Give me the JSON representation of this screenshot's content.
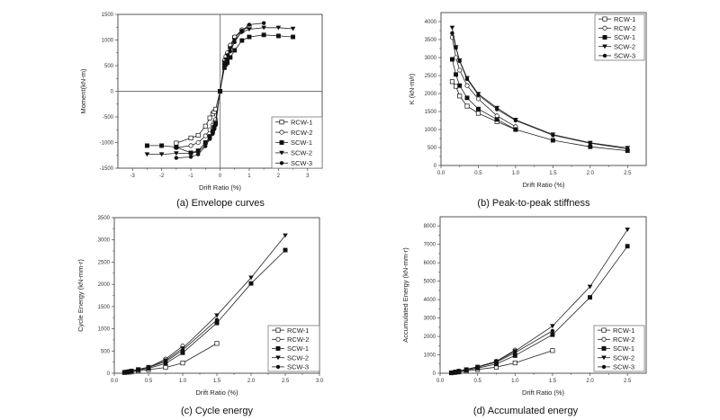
{
  "series_names": [
    "RCW-1",
    "RCW-2",
    "SCW-1",
    "SCW-2",
    "SCW-3"
  ],
  "chart_data": [
    {
      "id": "a",
      "type": "line",
      "caption": "(a)  Envelope curves",
      "xlabel": "Drift Ratio (%)",
      "ylabel": "Moment(kN-m)",
      "xlim": [
        -3.5,
        3.5
      ],
      "ylim": [
        -1500,
        1500
      ],
      "xticks": [
        -3,
        -2,
        -1,
        0,
        1,
        2,
        3
      ],
      "yticks": [
        -1500,
        -1000,
        -500,
        0,
        500,
        1000,
        1500
      ],
      "origin_lines": true,
      "legend": "bottom-right",
      "series": [
        {
          "name": "RCW-1",
          "marker": "square-open",
          "x": [
            -1.5,
            -1.0,
            -0.75,
            -0.5,
            -0.35,
            -0.25,
            -0.2,
            -0.15,
            0,
            0.15,
            0.2,
            0.25,
            0.35,
            0.5,
            0.75,
            1.0
          ],
          "y": [
            -1010,
            -910,
            -860,
            -680,
            -520,
            -440,
            -400,
            -350,
            0,
            560,
            620,
            690,
            870,
            1050,
            1180,
            1260
          ]
        },
        {
          "name": "RCW-2",
          "marker": "circle-open",
          "x": [
            -1.5,
            -1.0,
            -0.75,
            -0.5,
            -0.35,
            -0.25,
            -0.2,
            -0.15,
            0,
            0.15,
            0.2,
            0.25,
            0.35,
            0.5,
            0.75,
            1.0
          ],
          "y": [
            -1100,
            -1060,
            -1000,
            -870,
            -750,
            -660,
            -610,
            -550,
            0,
            600,
            680,
            750,
            900,
            1060,
            1200,
            1250
          ]
        },
        {
          "name": "SCW-1",
          "marker": "square-filled",
          "x": [
            -2.5,
            -2.0,
            -1.5,
            -1.0,
            -0.75,
            -0.5,
            -0.35,
            -0.25,
            -0.2,
            -0.15,
            0,
            0.15,
            0.2,
            0.25,
            0.35,
            0.5,
            0.75,
            1.0,
            1.5,
            2.0,
            2.5
          ],
          "y": [
            -1060,
            -1060,
            -1090,
            -1200,
            -1160,
            -1000,
            -880,
            -780,
            -700,
            -620,
            0,
            460,
            530,
            560,
            660,
            800,
            990,
            1060,
            1100,
            1080,
            1060
          ]
        },
        {
          "name": "SCW-2",
          "marker": "triangle-down-filled",
          "x": [
            -2.5,
            -2.0,
            -1.5,
            -1.0,
            -0.75,
            -0.5,
            -0.35,
            -0.25,
            -0.2,
            -0.15,
            0,
            0.15,
            0.2,
            0.25,
            0.35,
            0.5,
            0.75,
            1.0,
            1.5,
            2.0,
            2.5
          ],
          "y": [
            -1230,
            -1230,
            -1210,
            -1210,
            -1180,
            -1050,
            -900,
            -800,
            -720,
            -640,
            0,
            560,
            620,
            700,
            840,
            1000,
            1150,
            1210,
            1240,
            1240,
            1220
          ]
        },
        {
          "name": "SCW-3",
          "marker": "circle-filled",
          "x": [
            -1.5,
            -1.0,
            -0.75,
            -0.5,
            -0.35,
            -0.25,
            -0.2,
            -0.15,
            0,
            0.15,
            0.2,
            0.25,
            0.35,
            0.5,
            0.75,
            1.0,
            1.5
          ],
          "y": [
            -1300,
            -1280,
            -1230,
            -1070,
            -930,
            -830,
            -740,
            -660,
            0,
            520,
            570,
            620,
            780,
            960,
            1180,
            1300,
            1330
          ]
        }
      ]
    },
    {
      "id": "b",
      "type": "line",
      "caption": "(b)  Peak-to-peak  stiffness",
      "xlabel": "Drift Ratio (%)",
      "ylabel": "K (kN-m/r)",
      "xlim": [
        0,
        2.75
      ],
      "ylim": [
        0,
        4250
      ],
      "xticks": [
        0.0,
        0.5,
        1.0,
        1.5,
        2.0,
        2.5
      ],
      "yticks": [
        0,
        500,
        1000,
        1500,
        2000,
        2500,
        3000,
        3500,
        4000
      ],
      "legend": "top-right",
      "series": [
        {
          "name": "RCW-1",
          "marker": "square-open",
          "x": [
            0.15,
            0.2,
            0.25,
            0.35,
            0.5,
            0.75,
            1.0
          ],
          "y": [
            2330,
            2200,
            1930,
            1650,
            1450,
            1220,
            1000
          ]
        },
        {
          "name": "RCW-2",
          "marker": "circle-open",
          "x": [
            0.15,
            0.2,
            0.25,
            0.35,
            0.5,
            0.75,
            1.0
          ],
          "y": [
            3560,
            3000,
            2650,
            2220,
            1850,
            1380,
            1080
          ]
        },
        {
          "name": "SCW-1",
          "marker": "square-filled",
          "x": [
            0.15,
            0.2,
            0.25,
            0.35,
            0.5,
            0.75,
            1.0,
            1.5,
            2.0,
            2.5
          ],
          "y": [
            2950,
            2530,
            2220,
            1880,
            1570,
            1280,
            1000,
            700,
            520,
            410
          ]
        },
        {
          "name": "SCW-2",
          "marker": "triangle-down-filled",
          "x": [
            0.15,
            0.2,
            0.25,
            0.35,
            0.5,
            0.75,
            1.0,
            1.5,
            2.0,
            2.5
          ],
          "y": [
            3830,
            3290,
            2920,
            2430,
            1990,
            1600,
            1270,
            860,
            630,
            490
          ]
        },
        {
          "name": "SCW-3",
          "marker": "circle-filled",
          "x": [
            0.15,
            0.2,
            0.25,
            0.35,
            0.5,
            0.75,
            1.0,
            1.5,
            2.0,
            2.5
          ],
          "y": [
            3680,
            3270,
            2900,
            2400,
            1960,
            1560,
            1250,
            840,
            620,
            460
          ]
        }
      ]
    },
    {
      "id": "c",
      "type": "line",
      "caption": "(c)  Cycle  energy",
      "xlabel": "Drift Ratio (%)",
      "ylabel": "Cycle Energy (kN-mm-r)",
      "xlim": [
        0,
        3.0
      ],
      "ylim": [
        0,
        3500
      ],
      "xticks": [
        0.0,
        0.5,
        1.0,
        1.5,
        2.0,
        2.5,
        3.0
      ],
      "yticks": [
        0,
        500,
        1000,
        1500,
        2000,
        2500,
        3000,
        3500
      ],
      "legend": "bottom-right",
      "series": [
        {
          "name": "RCW-1",
          "marker": "square-open",
          "x": [
            0.15,
            0.2,
            0.25,
            0.35,
            0.5,
            0.75,
            1.0,
            1.5
          ],
          "y": [
            15,
            22,
            30,
            50,
            80,
            130,
            230,
            670
          ]
        },
        {
          "name": "RCW-2",
          "marker": "circle-open",
          "x": [
            0.15,
            0.2,
            0.25,
            0.35,
            0.5,
            0.75,
            1.0
          ],
          "y": [
            25,
            35,
            50,
            80,
            130,
            320,
            610
          ]
        },
        {
          "name": "SCW-1",
          "marker": "square-filled",
          "x": [
            0.15,
            0.2,
            0.25,
            0.35,
            0.5,
            0.75,
            1.0,
            1.5,
            2.0,
            2.5
          ],
          "y": [
            20,
            30,
            45,
            75,
            110,
            220,
            460,
            1130,
            2020,
            2770
          ]
        },
        {
          "name": "SCW-2",
          "marker": "triangle-down-filled",
          "x": [
            0.15,
            0.2,
            0.25,
            0.35,
            0.5,
            0.75,
            1.0,
            1.5,
            2.0,
            2.5
          ],
          "y": [
            25,
            40,
            55,
            90,
            140,
            290,
            560,
            1300,
            2150,
            3100
          ]
        },
        {
          "name": "SCW-3",
          "marker": "circle-filled",
          "x": [
            0.15,
            0.2,
            0.25,
            0.35,
            0.5,
            0.75,
            1.0,
            1.5
          ],
          "y": [
            22,
            35,
            50,
            85,
            130,
            260,
            520,
            1200
          ]
        }
      ]
    },
    {
      "id": "d",
      "type": "line",
      "caption": "(d)  Accumulated  energy",
      "xlabel": "Drift Ratio (%)",
      "ylabel": "Accumulated Energy (kN-mm-r)",
      "xlim": [
        0,
        2.75
      ],
      "ylim": [
        0,
        8500
      ],
      "xticks": [
        0.0,
        0.5,
        1.0,
        1.5,
        2.0,
        2.5
      ],
      "yticks": [
        0,
        1000,
        2000,
        3000,
        4000,
        5000,
        6000,
        7000,
        8000
      ],
      "legend": "bottom-right",
      "series": [
        {
          "name": "RCW-1",
          "marker": "square-open",
          "x": [
            0.15,
            0.2,
            0.25,
            0.35,
            0.5,
            0.75,
            1.0,
            1.5
          ],
          "y": [
            20,
            40,
            70,
            120,
            200,
            330,
            560,
            1230
          ]
        },
        {
          "name": "RCW-2",
          "marker": "circle-open",
          "x": [
            0.15,
            0.2,
            0.25,
            0.35,
            0.5,
            0.75,
            1.0
          ],
          "y": [
            30,
            70,
            120,
            200,
            330,
            650,
            1260
          ]
        },
        {
          "name": "SCW-1",
          "marker": "square-filled",
          "x": [
            0.15,
            0.2,
            0.25,
            0.35,
            0.5,
            0.75,
            1.0,
            1.5,
            2.0,
            2.5
          ],
          "y": [
            25,
            55,
            100,
            170,
            280,
            500,
            960,
            2090,
            4120,
            6900
          ]
        },
        {
          "name": "SCW-2",
          "marker": "triangle-down-filled",
          "x": [
            0.15,
            0.2,
            0.25,
            0.35,
            0.5,
            0.75,
            1.0,
            1.5,
            2.0,
            2.5
          ],
          "y": [
            30,
            70,
            120,
            210,
            350,
            640,
            1200,
            2560,
            4700,
            7800
          ]
        },
        {
          "name": "SCW-3",
          "marker": "circle-filled",
          "x": [
            0.15,
            0.2,
            0.25,
            0.35,
            0.5,
            0.75,
            1.0,
            1.5
          ],
          "y": [
            28,
            65,
            115,
            200,
            330,
            600,
            1120,
            2300
          ]
        }
      ]
    }
  ]
}
